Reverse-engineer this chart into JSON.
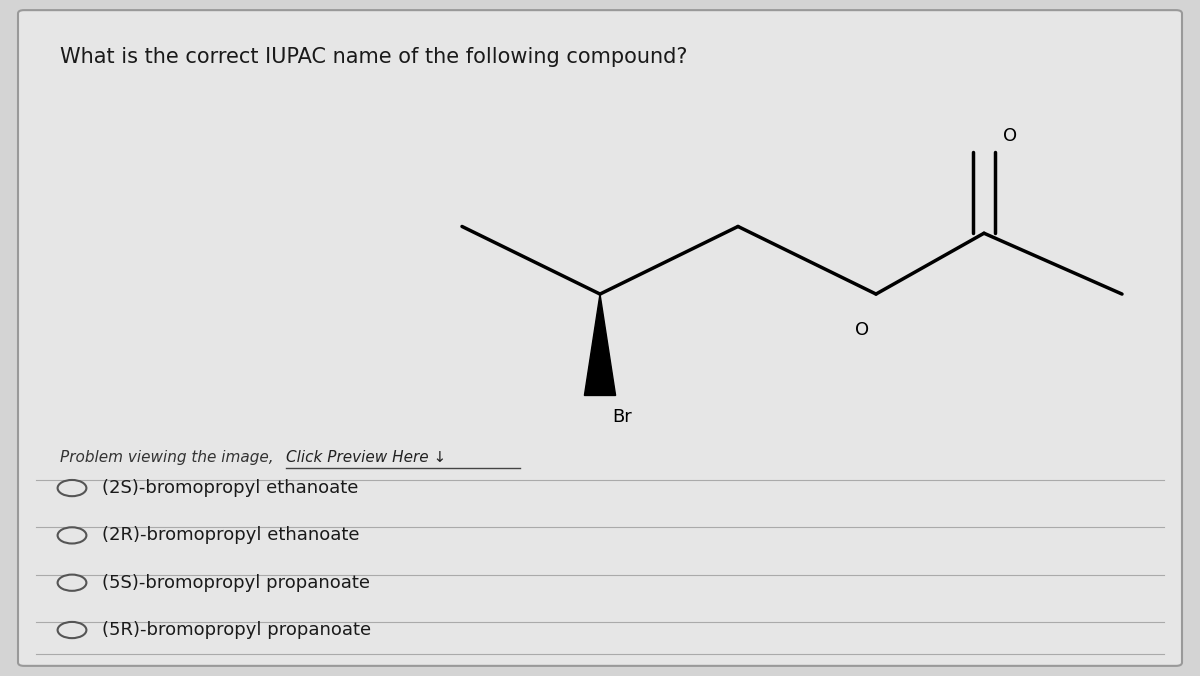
{
  "title": "What is the correct IUPAC name of the following compound?",
  "title_fontsize": 15,
  "problem_text": "Problem viewing the image, ",
  "click_text": "Click Preview Here ↓",
  "bg_color": "#d4d4d4",
  "card_color": "#e6e6e6",
  "options": [
    "(2S)-bromopropyl ethanoate",
    "(2R)-bromopropyl ethanoate",
    "(5S)-bromopropyl propanoate",
    "(5R)-bromopropyl propanoate"
  ],
  "option_fontsize": 13,
  "divider_color": "#aaaaaa",
  "text_color": "#1a1a1a"
}
